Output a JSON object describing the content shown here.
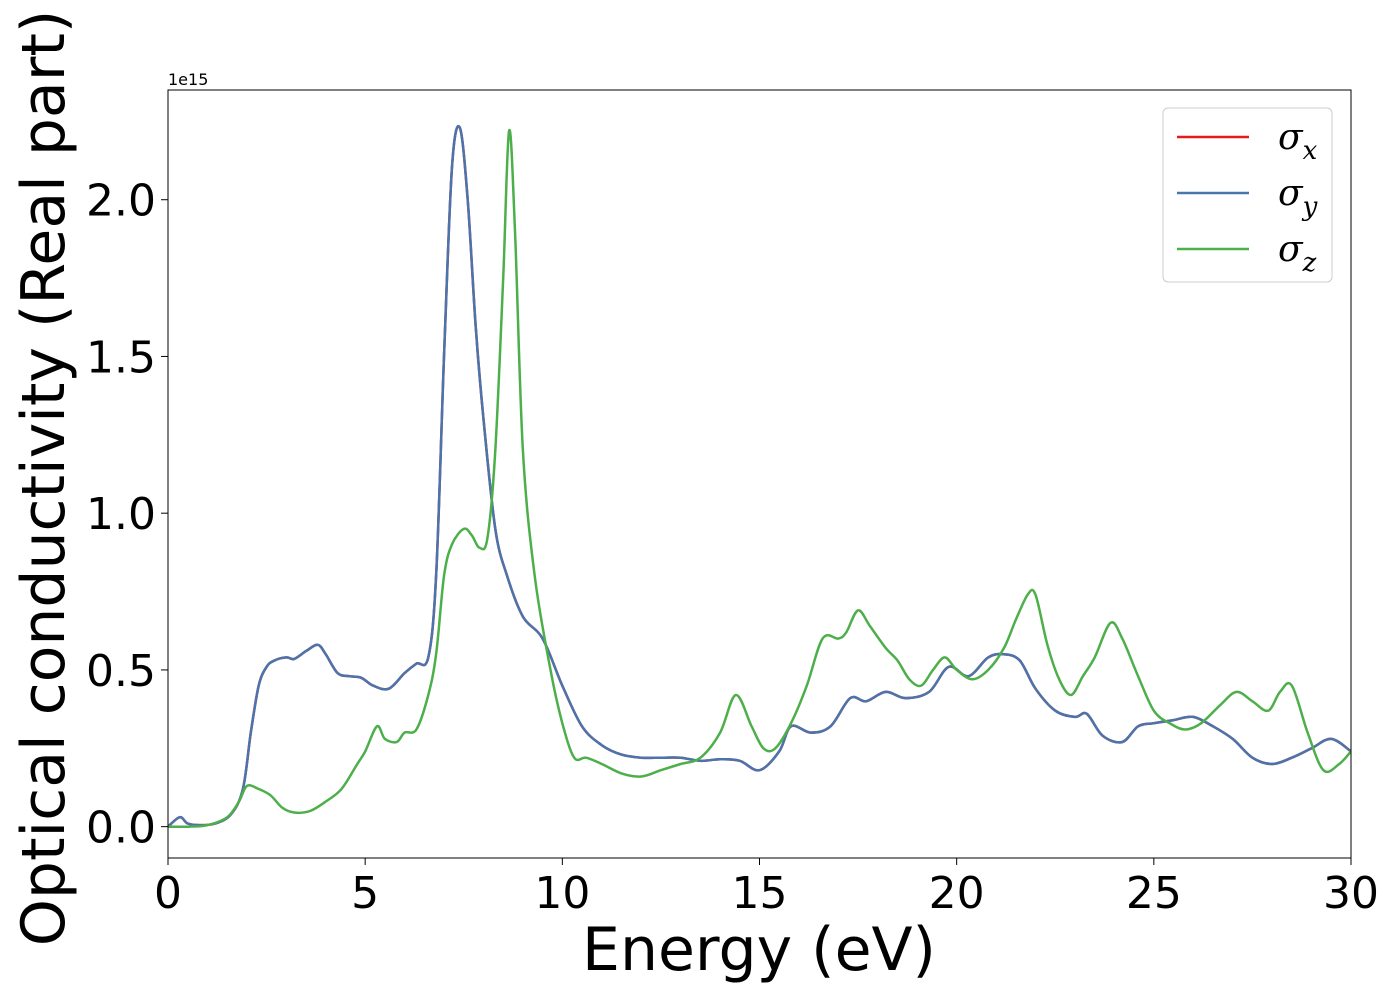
{
  "chart_data": {
    "type": "line",
    "xlabel": "Energy (eV)",
    "ylabel": "Optical conductivity (Real part)",
    "y_offset_label": "1e15",
    "xlim": [
      0,
      30
    ],
    "ylim": [
      -0.1,
      2.35
    ],
    "xticks": [
      0,
      5,
      10,
      15,
      20,
      25,
      30
    ],
    "xtick_labels": [
      "0",
      "5",
      "10",
      "15",
      "20",
      "25",
      "30"
    ],
    "yticks": [
      0.0,
      0.5,
      1.0,
      1.5,
      2.0
    ],
    "ytick_labels": [
      "0.0",
      "0.5",
      "1.0",
      "1.5",
      "2.0"
    ],
    "legend_position": "top-right",
    "grid": false,
    "series": [
      {
        "name": "σx",
        "label_base": "σ",
        "label_sub": "x",
        "color": "#e41a1c",
        "x": [
          0,
          0.3,
          0.5,
          0.8,
          1.2,
          1.6,
          1.9,
          2.1,
          2.3,
          2.5,
          2.7,
          3.0,
          3.2,
          3.5,
          3.8,
          4.0,
          4.3,
          4.6,
          4.9,
          5.2,
          5.6,
          6.0,
          6.3,
          6.6,
          6.8,
          7.0,
          7.2,
          7.4,
          7.6,
          7.8,
          8.0,
          8.3,
          8.6,
          9.0,
          9.5,
          10.0,
          10.5,
          11.0,
          11.5,
          12.0,
          12.5,
          13.0,
          13.5,
          14.0,
          14.5,
          15.0,
          15.5,
          15.8,
          16.3,
          16.8,
          17.3,
          17.7,
          18.2,
          18.7,
          19.3,
          19.8,
          20.3,
          20.8,
          21.2,
          21.6,
          22.0,
          22.5,
          23.0,
          23.3,
          23.7,
          24.2,
          24.6,
          25.0,
          25.5,
          26.0,
          26.5,
          27.0,
          27.5,
          28.0,
          28.5,
          29.0,
          29.5,
          30.0
        ],
        "y": [
          0.0,
          0.03,
          0.01,
          0.005,
          0.01,
          0.04,
          0.12,
          0.3,
          0.45,
          0.51,
          0.53,
          0.54,
          0.535,
          0.56,
          0.58,
          0.55,
          0.49,
          0.48,
          0.475,
          0.45,
          0.44,
          0.49,
          0.52,
          0.54,
          0.8,
          1.5,
          2.1,
          2.23,
          2.0,
          1.6,
          1.3,
          0.95,
          0.8,
          0.67,
          0.6,
          0.45,
          0.32,
          0.26,
          0.23,
          0.22,
          0.22,
          0.22,
          0.21,
          0.215,
          0.21,
          0.18,
          0.24,
          0.32,
          0.3,
          0.32,
          0.41,
          0.4,
          0.43,
          0.41,
          0.43,
          0.51,
          0.48,
          0.54,
          0.55,
          0.53,
          0.44,
          0.37,
          0.35,
          0.36,
          0.29,
          0.27,
          0.32,
          0.33,
          0.34,
          0.35,
          0.32,
          0.28,
          0.22,
          0.2,
          0.22,
          0.25,
          0.28,
          0.24
        ]
      },
      {
        "name": "σy",
        "label_base": "σ",
        "label_sub": "y",
        "color": "#4a74ac",
        "x": [
          0,
          0.3,
          0.5,
          0.8,
          1.2,
          1.6,
          1.9,
          2.1,
          2.3,
          2.5,
          2.7,
          3.0,
          3.2,
          3.5,
          3.8,
          4.0,
          4.3,
          4.6,
          4.9,
          5.2,
          5.6,
          6.0,
          6.3,
          6.6,
          6.8,
          7.0,
          7.2,
          7.4,
          7.6,
          7.8,
          8.0,
          8.3,
          8.6,
          9.0,
          9.5,
          10.0,
          10.5,
          11.0,
          11.5,
          12.0,
          12.5,
          13.0,
          13.5,
          14.0,
          14.5,
          15.0,
          15.5,
          15.8,
          16.3,
          16.8,
          17.3,
          17.7,
          18.2,
          18.7,
          19.3,
          19.8,
          20.3,
          20.8,
          21.2,
          21.6,
          22.0,
          22.5,
          23.0,
          23.3,
          23.7,
          24.2,
          24.6,
          25.0,
          25.5,
          26.0,
          26.5,
          27.0,
          27.5,
          28.0,
          28.5,
          29.0,
          29.5,
          30.0
        ],
        "y": [
          0.0,
          0.03,
          0.01,
          0.005,
          0.01,
          0.04,
          0.12,
          0.3,
          0.45,
          0.51,
          0.53,
          0.54,
          0.535,
          0.56,
          0.58,
          0.55,
          0.49,
          0.48,
          0.475,
          0.45,
          0.44,
          0.49,
          0.52,
          0.54,
          0.8,
          1.5,
          2.1,
          2.23,
          2.0,
          1.6,
          1.3,
          0.95,
          0.8,
          0.67,
          0.6,
          0.45,
          0.32,
          0.26,
          0.23,
          0.22,
          0.22,
          0.22,
          0.21,
          0.215,
          0.21,
          0.18,
          0.24,
          0.32,
          0.3,
          0.32,
          0.41,
          0.4,
          0.43,
          0.41,
          0.43,
          0.51,
          0.48,
          0.54,
          0.55,
          0.53,
          0.44,
          0.37,
          0.35,
          0.36,
          0.29,
          0.27,
          0.32,
          0.33,
          0.34,
          0.35,
          0.32,
          0.28,
          0.22,
          0.2,
          0.22,
          0.25,
          0.28,
          0.24
        ]
      },
      {
        "name": "σz",
        "label_base": "σ",
        "label_sub": "z",
        "color": "#4daf4a",
        "x": [
          0,
          0.5,
          1.0,
          1.5,
          1.8,
          2.0,
          2.3,
          2.6,
          2.9,
          3.2,
          3.6,
          4.0,
          4.4,
          4.8,
          5.0,
          5.3,
          5.5,
          5.8,
          6.0,
          6.3,
          6.6,
          6.8,
          7.0,
          7.2,
          7.5,
          7.7,
          7.9,
          8.1,
          8.3,
          8.5,
          8.65,
          8.8,
          9.0,
          9.3,
          9.7,
          10.0,
          10.3,
          10.6,
          11.0,
          11.5,
          12.0,
          12.5,
          13.0,
          13.5,
          14.0,
          14.4,
          14.8,
          15.1,
          15.4,
          15.8,
          16.2,
          16.6,
          17.0,
          17.2,
          17.5,
          17.8,
          18.2,
          18.5,
          18.8,
          19.1,
          19.4,
          19.7,
          20.0,
          20.4,
          20.8,
          21.2,
          21.5,
          21.8,
          22.0,
          22.3,
          22.6,
          22.9,
          23.2,
          23.5,
          23.9,
          24.2,
          24.6,
          25.0,
          25.4,
          25.8,
          26.2,
          26.7,
          27.1,
          27.5,
          27.9,
          28.2,
          28.5,
          28.9,
          29.3,
          29.7,
          30.0
        ],
        "y": [
          0.0,
          0.0,
          0.005,
          0.03,
          0.08,
          0.13,
          0.12,
          0.1,
          0.06,
          0.045,
          0.05,
          0.08,
          0.12,
          0.2,
          0.24,
          0.32,
          0.28,
          0.27,
          0.3,
          0.31,
          0.42,
          0.55,
          0.8,
          0.9,
          0.95,
          0.93,
          0.89,
          0.92,
          1.2,
          1.75,
          2.22,
          1.9,
          1.2,
          0.8,
          0.5,
          0.33,
          0.22,
          0.22,
          0.2,
          0.17,
          0.16,
          0.18,
          0.2,
          0.22,
          0.3,
          0.42,
          0.32,
          0.25,
          0.25,
          0.33,
          0.45,
          0.6,
          0.6,
          0.62,
          0.69,
          0.64,
          0.57,
          0.53,
          0.47,
          0.45,
          0.5,
          0.54,
          0.5,
          0.47,
          0.5,
          0.57,
          0.66,
          0.74,
          0.74,
          0.58,
          0.47,
          0.42,
          0.48,
          0.54,
          0.65,
          0.6,
          0.48,
          0.37,
          0.33,
          0.31,
          0.33,
          0.39,
          0.43,
          0.4,
          0.37,
          0.43,
          0.45,
          0.3,
          0.18,
          0.2,
          0.24
        ]
      }
    ]
  }
}
